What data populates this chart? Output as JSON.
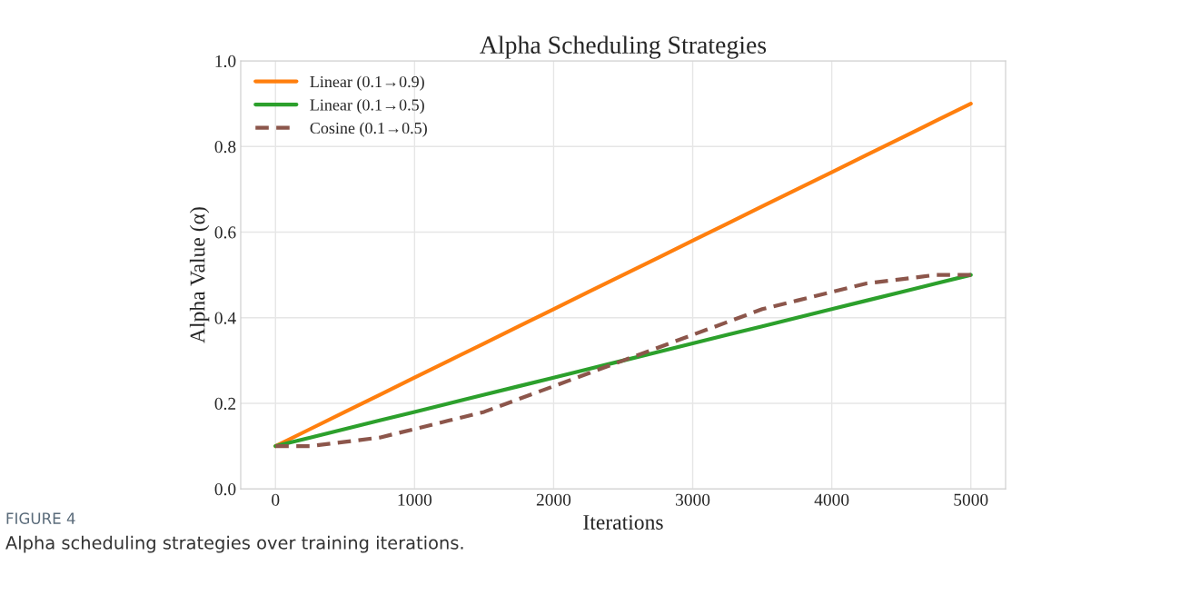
{
  "chart_data": {
    "type": "line",
    "title": "Alpha Scheduling Strategies",
    "xlabel": "Iterations",
    "ylabel": "Alpha Value (α)",
    "x": [
      0,
      250,
      500,
      750,
      1000,
      1250,
      1500,
      1750,
      2000,
      2250,
      2500,
      2750,
      3000,
      3250,
      3500,
      3750,
      4000,
      4250,
      4500,
      4750,
      5000
    ],
    "series": [
      {
        "name": "Linear (0.1→0.9)",
        "color": "#ff7f0e",
        "line_style": "solid",
        "values": [
          0.1,
          0.14,
          0.18,
          0.22,
          0.26,
          0.3,
          0.34,
          0.38,
          0.42,
          0.46,
          0.5,
          0.54,
          0.58,
          0.62,
          0.66,
          0.7,
          0.74,
          0.78,
          0.82,
          0.86,
          0.9
        ]
      },
      {
        "name": "Linear (0.1→0.5)",
        "color": "#2ca02c",
        "line_style": "solid",
        "values": [
          0.1,
          0.12,
          0.14,
          0.16,
          0.18,
          0.2,
          0.22,
          0.24,
          0.26,
          0.28,
          0.3,
          0.32,
          0.34,
          0.36,
          0.38,
          0.4,
          0.42,
          0.44,
          0.46,
          0.48,
          0.5
        ]
      },
      {
        "name": "Cosine (0.1→0.5)",
        "color": "#8c564b",
        "line_style": "dashed",
        "values": [
          0.1,
          0.1,
          0.11,
          0.12,
          0.14,
          0.16,
          0.18,
          0.21,
          0.24,
          0.27,
          0.3,
          0.33,
          0.36,
          0.39,
          0.42,
          0.44,
          0.46,
          0.48,
          0.49,
          0.5,
          0.5
        ]
      }
    ],
    "xlim": [
      -250,
      5250
    ],
    "xticks": [
      0,
      1000,
      2000,
      3000,
      4000,
      5000
    ],
    "ylim": [
      0,
      1.0
    ],
    "yticks": [
      {
        "value": 0,
        "label": "0.0"
      },
      {
        "value": 0.2,
        "label": "0.2"
      },
      {
        "value": 0.4,
        "label": "0.4"
      },
      {
        "value": 0.6,
        "label": "0.6"
      },
      {
        "value": 0.8,
        "label": "0.8"
      },
      {
        "value": 1.0,
        "label": "1.0"
      }
    ],
    "grid": true,
    "legend": "top left",
    "marker": "none",
    "annotations": [
      "FIGURE 4",
      "Alpha scheduling strategies over training iterations."
    ]
  }
}
